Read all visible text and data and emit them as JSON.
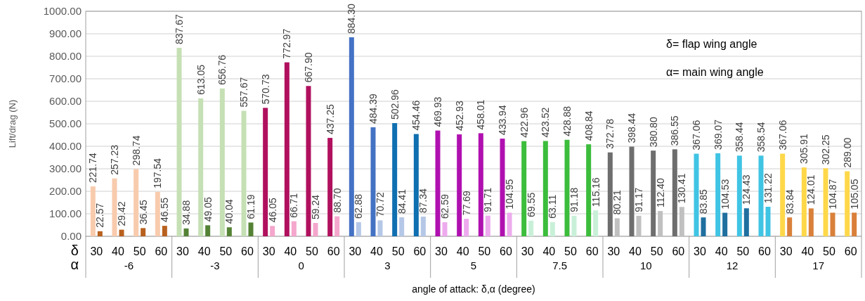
{
  "chart_data": {
    "type": "bar",
    "xlabel": "angle of attack: δ,α (degree)",
    "ylabel": "Lift/drag (N)",
    "categories": [
      "30",
      "40",
      "50",
      "60",
      "30",
      "40",
      "50",
      "60",
      "30",
      "40",
      "50",
      "60",
      "30",
      "40",
      "50",
      "60",
      "30",
      "40",
      "50",
      "60",
      "30",
      "40",
      "50",
      "60",
      "30",
      "40",
      "50",
      "60",
      "30",
      "40",
      "50",
      "60",
      "30",
      "40",
      "50",
      "60"
    ],
    "series": [
      {
        "values": [
          221.74,
          257.23,
          298.74,
          197.54,
          837.67,
          613.05,
          656.76,
          557.67,
          570.73,
          772.97,
          667.9,
          437.25,
          884.3,
          484.39,
          502.96,
          454.46,
          469.93,
          452.93,
          458.01,
          433.94,
          422.96,
          423.52,
          428.88,
          408.84,
          372.78,
          398.44,
          380.8,
          386.55,
          367.06,
          369.07,
          358.44,
          358.54,
          367.06,
          305.91,
          302.25,
          289.0
        ],
        "value_labels": [
          "221.74",
          "257.23",
          "298.74",
          "197.54",
          "837.67",
          "613.05",
          "656.76",
          "557.67",
          "570.73",
          "772.97",
          "667.90",
          "437.25",
          "884.30",
          "484.39",
          "502.96",
          "454.46",
          "469.93",
          "452.93",
          "458.01",
          "433.94",
          "422.96",
          "423.52",
          "428.88",
          "408.84",
          "372.78",
          "398.44",
          "380.80",
          "386.55",
          "367.06",
          "369.07",
          "358.44",
          "358.54",
          "367.06",
          "305.91",
          "302.25",
          "289.00"
        ],
        "colors": [
          "#f8cbad",
          "#f8cbad",
          "#f8cbad",
          "#f8cbad",
          "#c5e0b4",
          "#c5e0b4",
          "#c5e0b4",
          "#c5e0b4",
          "#b0105e",
          "#b0105e",
          "#b0105e",
          "#b0105e",
          "#4472c4",
          "#4472c4",
          "#0f6fb0",
          "#0f6fb0",
          "#b010b0",
          "#b010b0",
          "#b010b0",
          "#b010b0",
          "#3cbd3c",
          "#3cbd3c",
          "#3cbd3c",
          "#3cbd3c",
          "#6e6e6e",
          "#6e6e6e",
          "#6e6e6e",
          "#6e6e6e",
          "#40c4e4",
          "#40c4e4",
          "#40c4e4",
          "#40c4e4",
          "#ffd84a",
          "#ffd84a",
          "#ffd84a",
          "#ffd84a"
        ]
      },
      {
        "values": [
          22.57,
          29.42,
          36.45,
          46.55,
          34.88,
          49.05,
          40.04,
          61.19,
          46.05,
          66.71,
          59.24,
          88.7,
          62.88,
          70.72,
          84.41,
          87.34,
          62.59,
          77.69,
          91.71,
          104.95,
          69.55,
          63.11,
          91.18,
          115.16,
          80.21,
          91.17,
          112.4,
          130.41,
          83.85,
          104.53,
          124.43,
          131.22,
          83.84,
          124.01,
          104.87,
          105.05
        ],
        "value_labels": [
          "22.57",
          "29.42",
          "36.45",
          "46.55",
          "34.88",
          "49.05",
          "40.04",
          "61.19",
          "46.05",
          "66.71",
          "59.24",
          "88.70",
          "62.88",
          "70.72",
          "84.41",
          "87.34",
          "62.59",
          "77.69",
          "91.71",
          "104.95",
          "69.55",
          "63.11",
          "91.18",
          "115.16",
          "80.21",
          "91.17",
          "112.40",
          "130.41",
          "83.85",
          "104.53",
          "124.43",
          "131.22",
          "83.84",
          "124.01",
          "104.87",
          "105.05"
        ],
        "colors": [
          "#b8601e",
          "#b8601e",
          "#b8601e",
          "#b8601e",
          "#548235",
          "#548235",
          "#548235",
          "#548235",
          "#f4a6cc",
          "#f4a6cc",
          "#f4a6cc",
          "#f4a6cc",
          "#b4c7e7",
          "#b4c7e7",
          "#b4c7e7",
          "#b4c7e7",
          "#eeaaee",
          "#eeaaee",
          "#eeaaee",
          "#eeaaee",
          "#c8f0d8",
          "#c8f0d8",
          "#c8f0d8",
          "#c8f0d8",
          "#c0c0c0",
          "#c0c0c0",
          "#c0c0c0",
          "#c0c0c0",
          "#1f6f9f",
          "#1f6f9f",
          "#1f6f9f",
          "#40c4e4",
          "#d9803a",
          "#d9803a",
          "#d9803a",
          "#d9803a"
        ]
      }
    ],
    "annotations": [
      "δ",
      "α",
      "-6",
      "-3",
      "0",
      "3",
      "5",
      "7.5",
      "10",
      "12",
      "17",
      "δ= flap  wing angle",
      "α= main wing angle"
    ],
    "ylim": [
      0,
      1000
    ],
    "yticks": [
      {
        "value": 0,
        "label": "0.00"
      },
      {
        "value": 100,
        "label": "100.00"
      },
      {
        "value": 200,
        "label": "200.00"
      },
      {
        "value": 300,
        "label": "300.00"
      },
      {
        "value": 400,
        "label": "400.00"
      },
      {
        "value": 500,
        "label": "500.00"
      },
      {
        "value": 600,
        "label": "600.00"
      },
      {
        "value": 700,
        "label": "700.00"
      },
      {
        "value": 800,
        "label": "800.00"
      },
      {
        "value": 900,
        "label": "900.00"
      },
      {
        "value": 1000,
        "label": "1000.00"
      }
    ],
    "grid": "y"
  }
}
